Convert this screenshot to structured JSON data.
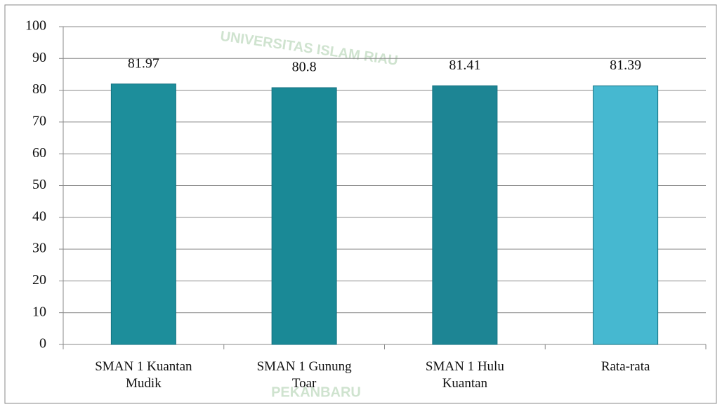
{
  "chart_data": {
    "type": "bar",
    "watermark": [
      "UNIVERSITAS ISLAM RIAU",
      "PEKANBARU"
    ],
    "categories": [
      "SMAN 1 Kuantan Mudik",
      "SMAN 1 Gunung Toar",
      "SMAN 1 Hulu Kuantan",
      "Rata-rata"
    ],
    "values": [
      81.97,
      80.8,
      81.41,
      81.39
    ],
    "colors": [
      "#1d8e9b",
      "#1a8996",
      "#1d8594",
      "#46b8d0"
    ],
    "ylim": [
      0,
      100
    ],
    "yticks": [
      0,
      10,
      20,
      30,
      40,
      50,
      60,
      70,
      80,
      90,
      100
    ],
    "grid": true
  }
}
